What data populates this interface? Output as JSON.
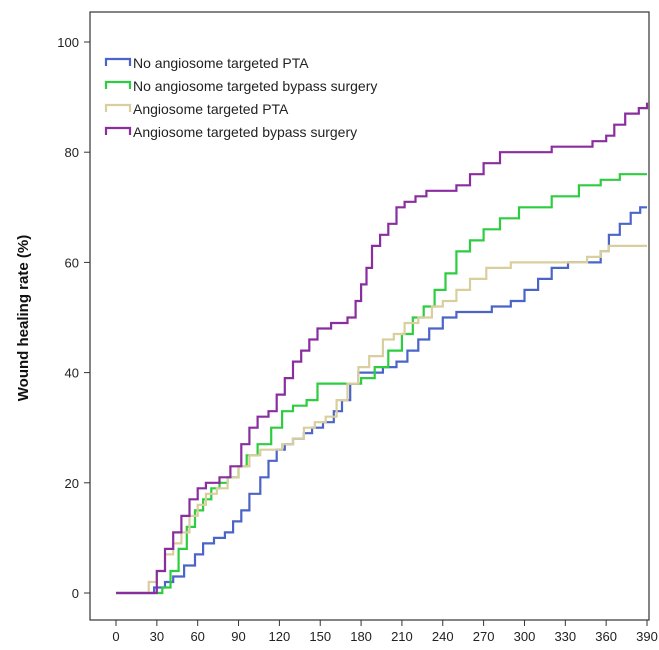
{
  "chart_data": {
    "type": "line",
    "step": true,
    "ylabel": "Wound healing rate (%)",
    "xlabel": "",
    "xlim": [
      0,
      390
    ],
    "ylim": [
      0,
      100
    ],
    "x_ticks": [
      0,
      30,
      60,
      90,
      120,
      150,
      180,
      210,
      240,
      270,
      300,
      330,
      360,
      390
    ],
    "y_ticks": [
      0,
      20,
      40,
      60,
      80,
      100
    ],
    "legend_position": "top-left",
    "grid": false,
    "series": [
      {
        "name": "No angiosome targeted PTA",
        "color": "#4a64c8",
        "points": [
          [
            0,
            0
          ],
          [
            20,
            0
          ],
          [
            28,
            1
          ],
          [
            36,
            2
          ],
          [
            42,
            3
          ],
          [
            50,
            5
          ],
          [
            58,
            7
          ],
          [
            64,
            9
          ],
          [
            72,
            10
          ],
          [
            80,
            11
          ],
          [
            86,
            13
          ],
          [
            92,
            15
          ],
          [
            98,
            18
          ],
          [
            106,
            21
          ],
          [
            112,
            24
          ],
          [
            118,
            26
          ],
          [
            124,
            27
          ],
          [
            130,
            28
          ],
          [
            138,
            29
          ],
          [
            144,
            30
          ],
          [
            152,
            31
          ],
          [
            160,
            33
          ],
          [
            166,
            35
          ],
          [
            172,
            38
          ],
          [
            178,
            40
          ],
          [
            186,
            40
          ],
          [
            196,
            41
          ],
          [
            206,
            42
          ],
          [
            214,
            44
          ],
          [
            222,
            46
          ],
          [
            230,
            48
          ],
          [
            240,
            50
          ],
          [
            250,
            51
          ],
          [
            262,
            51
          ],
          [
            276,
            52
          ],
          [
            290,
            53
          ],
          [
            300,
            55
          ],
          [
            310,
            57
          ],
          [
            320,
            59
          ],
          [
            332,
            60
          ],
          [
            350,
            60
          ],
          [
            356,
            62
          ],
          [
            362,
            65
          ],
          [
            370,
            67
          ],
          [
            378,
            69
          ],
          [
            385,
            70
          ],
          [
            390,
            70
          ]
        ]
      },
      {
        "name": "No angiosome targeted bypass surgery",
        "color": "#2ecc40",
        "points": [
          [
            0,
            0
          ],
          [
            28,
            0
          ],
          [
            34,
            1
          ],
          [
            40,
            4
          ],
          [
            46,
            8
          ],
          [
            52,
            12
          ],
          [
            58,
            15
          ],
          [
            64,
            17
          ],
          [
            70,
            19
          ],
          [
            76,
            20
          ],
          [
            82,
            21
          ],
          [
            90,
            23
          ],
          [
            96,
            25
          ],
          [
            104,
            27
          ],
          [
            114,
            30
          ],
          [
            122,
            33
          ],
          [
            130,
            34
          ],
          [
            140,
            35
          ],
          [
            148,
            38
          ],
          [
            158,
            38
          ],
          [
            170,
            38
          ],
          [
            180,
            39
          ],
          [
            190,
            41
          ],
          [
            200,
            44
          ],
          [
            210,
            47
          ],
          [
            218,
            50
          ],
          [
            226,
            52
          ],
          [
            234,
            55
          ],
          [
            242,
            58
          ],
          [
            250,
            62
          ],
          [
            260,
            64
          ],
          [
            270,
            66
          ],
          [
            282,
            68
          ],
          [
            296,
            70
          ],
          [
            320,
            72
          ],
          [
            340,
            74
          ],
          [
            356,
            75
          ],
          [
            370,
            76
          ],
          [
            390,
            76
          ]
        ]
      },
      {
        "name": "Angiosome targeted PTA",
        "color": "#d9cf9e",
        "points": [
          [
            0,
            0
          ],
          [
            18,
            0
          ],
          [
            24,
            2
          ],
          [
            30,
            4
          ],
          [
            36,
            7
          ],
          [
            42,
            9
          ],
          [
            48,
            11
          ],
          [
            54,
            14
          ],
          [
            60,
            16
          ],
          [
            66,
            18
          ],
          [
            74,
            19
          ],
          [
            82,
            21
          ],
          [
            90,
            23
          ],
          [
            98,
            25
          ],
          [
            106,
            26
          ],
          [
            114,
            26
          ],
          [
            122,
            27
          ],
          [
            130,
            28
          ],
          [
            138,
            30
          ],
          [
            146,
            31
          ],
          [
            154,
            32
          ],
          [
            162,
            35
          ],
          [
            170,
            38
          ],
          [
            178,
            41
          ],
          [
            186,
            43
          ],
          [
            196,
            46
          ],
          [
            204,
            47
          ],
          [
            212,
            49
          ],
          [
            222,
            50
          ],
          [
            232,
            52
          ],
          [
            240,
            53
          ],
          [
            250,
            55
          ],
          [
            260,
            57
          ],
          [
            272,
            59
          ],
          [
            290,
            60
          ],
          [
            310,
            60
          ],
          [
            330,
            60
          ],
          [
            346,
            61
          ],
          [
            356,
            62
          ],
          [
            362,
            63
          ],
          [
            390,
            63
          ]
        ]
      },
      {
        "name": "Angiosome targeted bypass surgery",
        "color": "#8a2d9e",
        "points": [
          [
            0,
            0
          ],
          [
            24,
            0
          ],
          [
            30,
            4
          ],
          [
            36,
            8
          ],
          [
            42,
            11
          ],
          [
            48,
            14
          ],
          [
            54,
            17
          ],
          [
            60,
            19
          ],
          [
            66,
            20
          ],
          [
            76,
            21
          ],
          [
            84,
            23
          ],
          [
            92,
            27
          ],
          [
            98,
            30
          ],
          [
            104,
            32
          ],
          [
            112,
            33
          ],
          [
            118,
            36
          ],
          [
            124,
            39
          ],
          [
            130,
            42
          ],
          [
            136,
            44
          ],
          [
            142,
            46
          ],
          [
            148,
            48
          ],
          [
            158,
            49
          ],
          [
            170,
            50
          ],
          [
            176,
            53
          ],
          [
            180,
            56
          ],
          [
            184,
            59
          ],
          [
            188,
            63
          ],
          [
            194,
            65
          ],
          [
            200,
            67
          ],
          [
            206,
            70
          ],
          [
            212,
            71
          ],
          [
            220,
            72
          ],
          [
            228,
            73
          ],
          [
            240,
            73
          ],
          [
            250,
            74
          ],
          [
            260,
            76
          ],
          [
            270,
            78
          ],
          [
            282,
            80
          ],
          [
            300,
            80
          ],
          [
            320,
            81
          ],
          [
            340,
            81
          ],
          [
            350,
            82
          ],
          [
            360,
            83
          ],
          [
            366,
            85
          ],
          [
            374,
            87
          ],
          [
            384,
            88
          ],
          [
            390,
            89
          ]
        ]
      }
    ]
  }
}
